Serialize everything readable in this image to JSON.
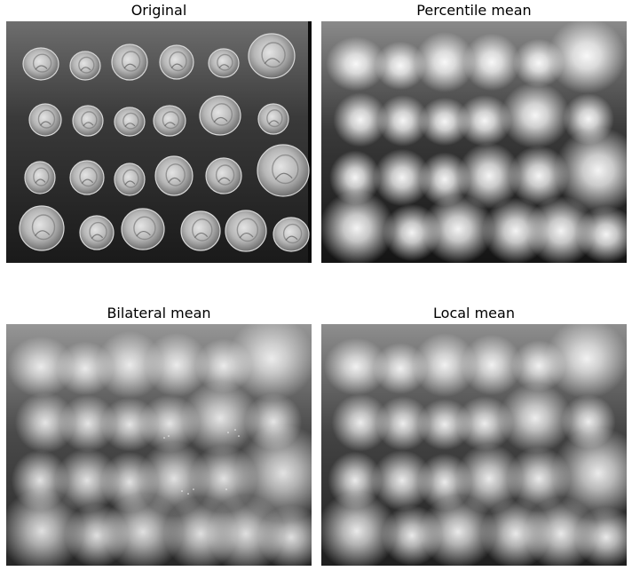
{
  "panels": [
    {
      "title": "Original",
      "kind": "original"
    },
    {
      "title": "Percentile mean",
      "kind": "percentile"
    },
    {
      "title": "Bilateral mean",
      "kind": "bilateral"
    },
    {
      "title": "Local mean",
      "kind": "local"
    }
  ]
}
